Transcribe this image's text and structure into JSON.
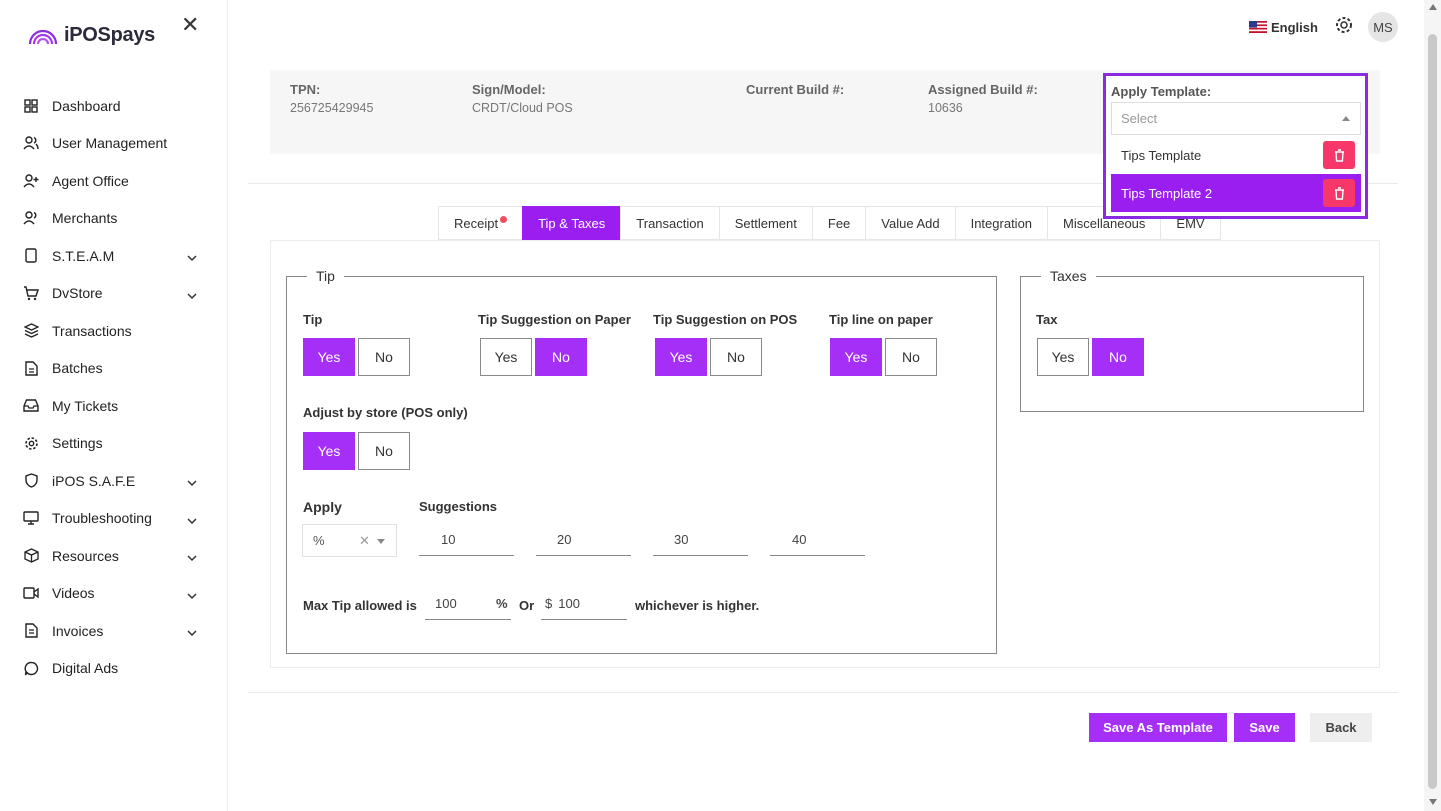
{
  "brand": {
    "name": "iPOSpays"
  },
  "header": {
    "language": "English",
    "avatar_initials": "MS"
  },
  "sidebar": {
    "items": [
      {
        "label": "Dashboard",
        "icon": "dashboard-icon",
        "has_chevron": false
      },
      {
        "label": "User Management",
        "icon": "users-icon",
        "has_chevron": false
      },
      {
        "label": "Agent Office",
        "icon": "user-plus-icon",
        "has_chevron": false
      },
      {
        "label": "Merchants",
        "icon": "users-icon",
        "has_chevron": false
      },
      {
        "label": "S.T.E.A.M",
        "icon": "device-icon",
        "has_chevron": true
      },
      {
        "label": "DvStore",
        "icon": "cart-icon",
        "has_chevron": true
      },
      {
        "label": "Transactions",
        "icon": "layers-icon",
        "has_chevron": false
      },
      {
        "label": "Batches",
        "icon": "file-icon",
        "has_chevron": false
      },
      {
        "label": "My Tickets",
        "icon": "inbox-icon",
        "has_chevron": false
      },
      {
        "label": "Settings",
        "icon": "gear-icon",
        "has_chevron": false
      },
      {
        "label": "iPOS S.A.F.E",
        "icon": "shield-icon",
        "has_chevron": true
      },
      {
        "label": "Troubleshooting",
        "icon": "monitor-icon",
        "has_chevron": true
      },
      {
        "label": "Resources",
        "icon": "box-icon",
        "has_chevron": true
      },
      {
        "label": "Videos",
        "icon": "video-icon",
        "has_chevron": true
      },
      {
        "label": "Invoices",
        "icon": "invoice-icon",
        "has_chevron": true
      },
      {
        "label": "Digital Ads",
        "icon": "chat-icon",
        "has_chevron": false
      }
    ]
  },
  "device_info": {
    "tpn_label": "TPN:",
    "tpn_value": "256725429945",
    "model_label": "Sign/Model:",
    "model_value": "CRDT/Cloud POS",
    "current_build_label": "Current Build #:",
    "current_build_value": "",
    "assigned_build_label": "Assigned Build #:",
    "assigned_build_value": "10636"
  },
  "apply_template": {
    "label": "Apply Template:",
    "placeholder": "Select",
    "options": [
      {
        "label": "Tips Template",
        "selected": false
      },
      {
        "label": "Tips Template 2",
        "selected": true
      }
    ]
  },
  "tabs": [
    {
      "label": "Receipt",
      "active": false,
      "badge": true
    },
    {
      "label": "Tip & Taxes",
      "active": true,
      "badge": false
    },
    {
      "label": "Transaction",
      "active": false,
      "badge": false
    },
    {
      "label": "Settlement",
      "active": false,
      "badge": false
    },
    {
      "label": "Fee",
      "active": false,
      "badge": false
    },
    {
      "label": "Value Add",
      "active": false,
      "badge": false
    },
    {
      "label": "Integration",
      "active": false,
      "badge": false
    },
    {
      "label": "Miscellaneous",
      "active": false,
      "badge": false
    },
    {
      "label": "EMV",
      "active": false,
      "badge": false
    }
  ],
  "tip": {
    "legend": "Tip",
    "yes_label": "Yes",
    "no_label": "No",
    "toggles": [
      {
        "label": "Tip",
        "value": "Yes"
      },
      {
        "label": "Tip Suggestion on Paper",
        "value": "No"
      },
      {
        "label": "Tip Suggestion on POS",
        "value": "Yes"
      },
      {
        "label": "Tip line on paper",
        "value": "Yes"
      },
      {
        "label": "Adjust by store (POS only)",
        "value": "Yes"
      }
    ],
    "apply_label": "Apply",
    "apply_value": "%",
    "suggestions_label": "Suggestions",
    "suggestions": [
      "10",
      "20",
      "30",
      "40"
    ],
    "max_tip_label": "Max Tip allowed is",
    "max_tip_percent": "100",
    "percent_symbol": "%",
    "or_label": "Or",
    "dollar_symbol": "$",
    "max_tip_amount": "100",
    "whichever_label": "whichever is higher."
  },
  "taxes": {
    "legend": "Taxes",
    "tax_label": "Tax",
    "value": "No"
  },
  "footer": {
    "save_template_label": "Save As Template",
    "save_label": "Save",
    "back_label": "Back"
  },
  "colors": {
    "accent": "#a52ff7",
    "delete": "#f7376a",
    "highlight_border": "#8a2be2"
  }
}
